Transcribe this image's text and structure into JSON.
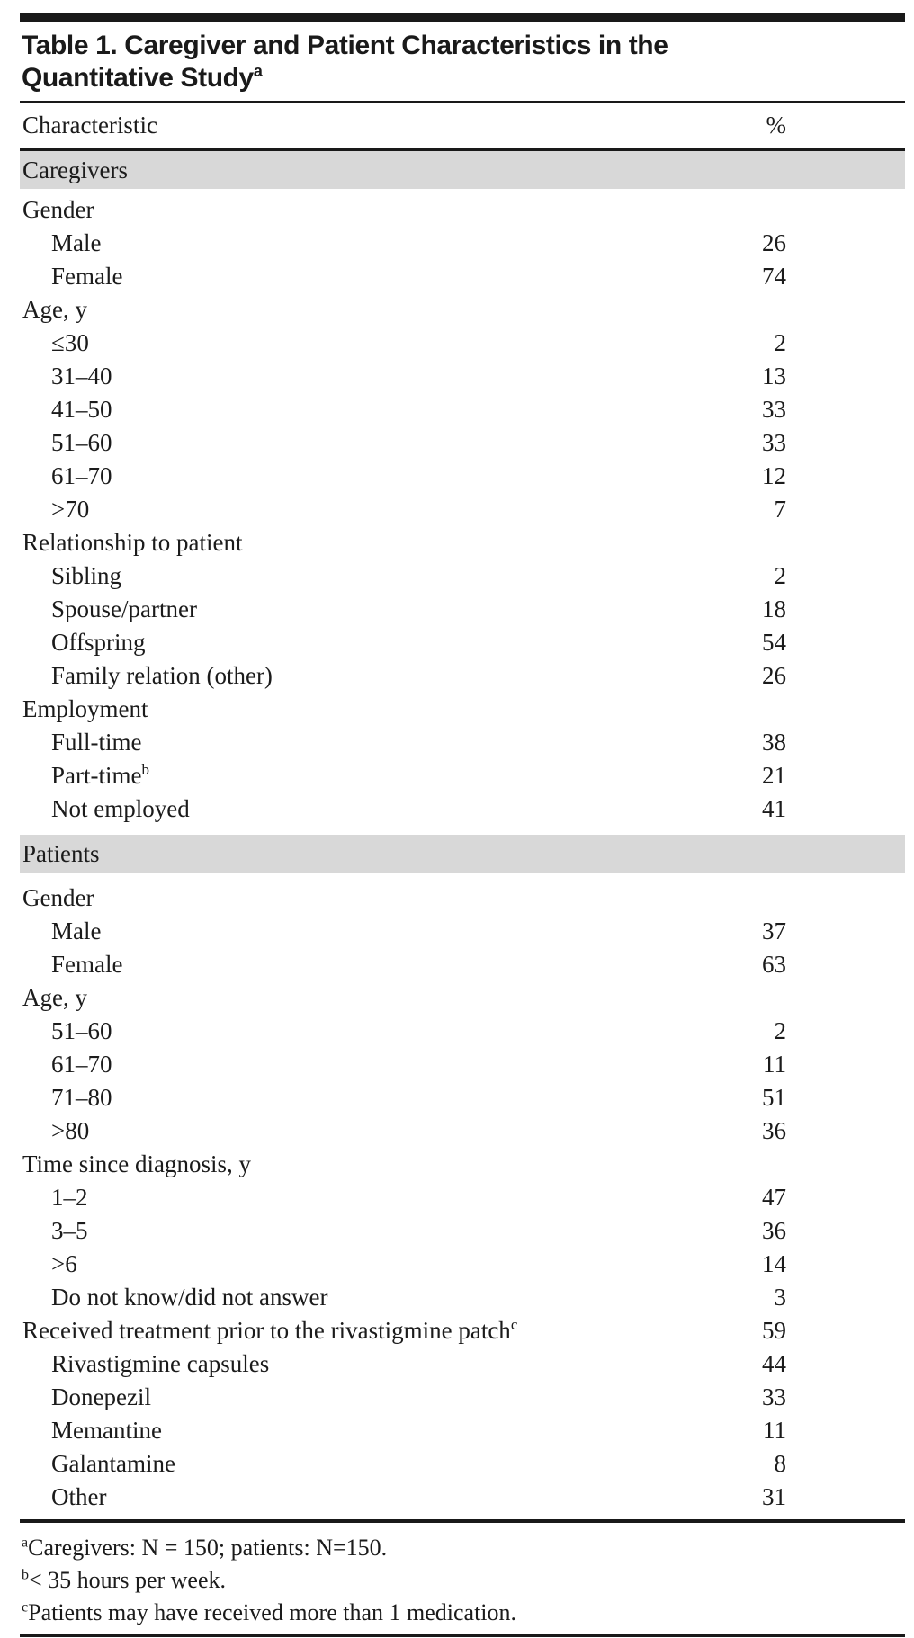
{
  "title": {
    "line1": "Table 1. Caregiver and Patient Characteristics in the",
    "line2": "Quantitative Study",
    "superscript": "a"
  },
  "columns": {
    "characteristic": "Characteristic",
    "percent": "%"
  },
  "table": {
    "sections": [
      {
        "header": "Caregivers",
        "rows": [
          {
            "label": "Gender",
            "value": "",
            "indent": 0
          },
          {
            "label": "Male",
            "value": "26",
            "indent": 1
          },
          {
            "label": "Female",
            "value": "74",
            "indent": 1
          },
          {
            "label": "Age, y",
            "value": "",
            "indent": 0
          },
          {
            "label": "≤30",
            "value": "2",
            "indent": 1
          },
          {
            "label": "31–40",
            "value": "13",
            "indent": 1
          },
          {
            "label": "41–50",
            "value": "33",
            "indent": 1
          },
          {
            "label": "51–60",
            "value": "33",
            "indent": 1
          },
          {
            "label": "61–70",
            "value": "12",
            "indent": 1
          },
          {
            "label": ">70",
            "value": "7",
            "indent": 1
          },
          {
            "label": "Relationship to patient",
            "value": "",
            "indent": 0
          },
          {
            "label": "Sibling",
            "value": "2",
            "indent": 1
          },
          {
            "label": "Spouse/partner",
            "value": "18",
            "indent": 1
          },
          {
            "label": "Offspring",
            "value": "54",
            "indent": 1
          },
          {
            "label": "Family relation (other)",
            "value": "26",
            "indent": 1
          },
          {
            "label": "Employment",
            "value": "",
            "indent": 0
          },
          {
            "label": "Full-time",
            "value": "38",
            "indent": 1
          },
          {
            "label": "Part-time",
            "sup": "b",
            "value": "21",
            "indent": 1
          },
          {
            "label": "Not employed",
            "value": "41",
            "indent": 1
          }
        ]
      },
      {
        "header": "Patients",
        "rows": [
          {
            "label": "Gender",
            "value": "",
            "indent": 0
          },
          {
            "label": "Male",
            "value": "37",
            "indent": 1
          },
          {
            "label": "Female",
            "value": "63",
            "indent": 1
          },
          {
            "label": "Age, y",
            "value": "",
            "indent": 0
          },
          {
            "label": "51–60",
            "value": "2",
            "indent": 1
          },
          {
            "label": "61–70",
            "value": "11",
            "indent": 1
          },
          {
            "label": "71–80",
            "value": "51",
            "indent": 1
          },
          {
            "label": ">80",
            "value": "36",
            "indent": 1
          },
          {
            "label": "Time since diagnosis, y",
            "value": "",
            "indent": 0
          },
          {
            "label": "1–2",
            "value": "47",
            "indent": 1
          },
          {
            "label": "3–5",
            "value": "36",
            "indent": 1
          },
          {
            "label": ">6",
            "value": "14",
            "indent": 1
          },
          {
            "label": "Do not know/did not answer",
            "value": "3",
            "indent": 1
          },
          {
            "label": "Received treatment prior to the rivastigmine patch",
            "sup": "c",
            "value": "59",
            "indent": 0
          },
          {
            "label": "Rivastigmine capsules",
            "value": "44",
            "indent": 1
          },
          {
            "label": "Donepezil",
            "value": "33",
            "indent": 1
          },
          {
            "label": "Memantine",
            "value": "11",
            "indent": 1
          },
          {
            "label": "Galantamine",
            "value": "8",
            "indent": 1
          },
          {
            "label": "Other",
            "value": "31",
            "indent": 1
          }
        ]
      }
    ]
  },
  "footnotes": [
    {
      "marker": "a",
      "text": "Caregivers: N = 150; patients: N=150."
    },
    {
      "marker": "b",
      "text": "< 35 hours per week."
    },
    {
      "marker": "c",
      "text": "Patients may have received more than 1 medication."
    }
  ],
  "colors": {
    "section_band": "#d8d8d8",
    "text": "#1b1b1b",
    "rule": "#191919"
  }
}
